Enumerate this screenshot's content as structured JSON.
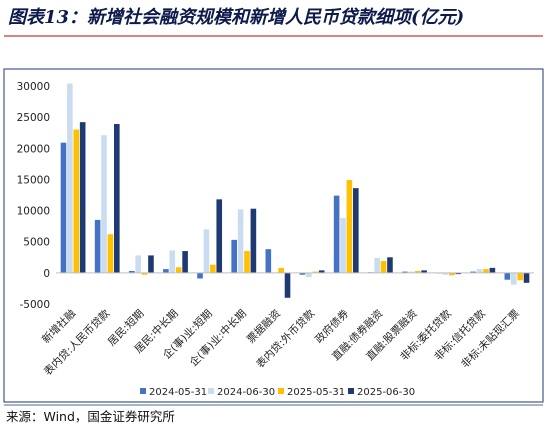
{
  "figure": {
    "title": "图表13：新增社会融资规模和新增人民币贷款细项(亿元)",
    "source": "来源：Wind，国金证券研究所"
  },
  "chart_data": {
    "type": "bar",
    "title": "",
    "xlabel": "",
    "ylabel": "",
    "ylim": [
      -5000,
      30000
    ],
    "yticks": [
      -5000,
      0,
      5000,
      10000,
      15000,
      20000,
      25000,
      30000
    ],
    "grid": false,
    "legend_position": "bottom",
    "categories": [
      "新增社融",
      "表内贷:人民币贷款",
      "居民:短期",
      "居民:中长期",
      "企(事)业:短期",
      "企(事)业:中长期",
      "票据融资",
      "表内贷:外币贷款",
      "政府债券",
      "直融:债券融资",
      "直融:股票融资",
      "非标:委托贷款",
      "非标:信托贷款",
      "非标:未贴现汇票"
    ],
    "series": [
      {
        "name": "2024-05-31",
        "color": "#4472c4",
        "values": [
          20900,
          8500,
          300,
          600,
          -900,
          5300,
          3800,
          -300,
          12400,
          100,
          200,
          -100,
          200,
          -1100
        ]
      },
      {
        "name": "2024-06-30",
        "color": "#c9dcf0",
        "values": [
          30400,
          22100,
          2800,
          3600,
          7000,
          10200,
          0,
          -700,
          8800,
          2400,
          200,
          -300,
          600,
          -1900
        ]
      },
      {
        "name": "2025-05-31",
        "color": "#ffc000",
        "values": [
          23000,
          6200,
          -300,
          900,
          1300,
          3500,
          800,
          200,
          14900,
          1900,
          300,
          -400,
          600,
          -1200
        ]
      },
      {
        "name": "2025-06-30",
        "color": "#1f3a73",
        "values": [
          24200,
          23900,
          2800,
          3500,
          11800,
          10300,
          -4000,
          400,
          13600,
          2500,
          400,
          -200,
          800,
          -1600
        ]
      }
    ]
  }
}
